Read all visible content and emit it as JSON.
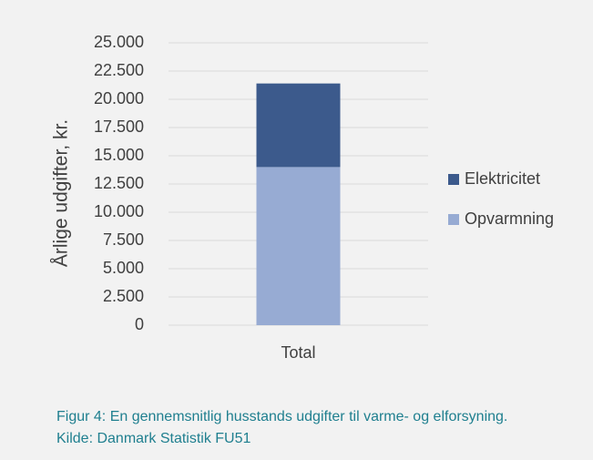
{
  "chart_data": {
    "type": "stacked_bar",
    "ylabel": "Årlige udgifter, kr.",
    "categories": [
      "Total"
    ],
    "series": [
      {
        "name": "Opvarmning",
        "color": "#97abd3",
        "values": [
          14000
        ]
      },
      {
        "name": "Elektricitet",
        "color": "#3c5a8c",
        "values": [
          7400
        ]
      }
    ],
    "ylim": [
      0,
      25000
    ],
    "yticks": [
      0,
      {
        "value": 2500,
        "label": "2.500"
      },
      {
        "value": 5000,
        "label": "5.000"
      },
      {
        "value": 7500,
        "label": "7.500"
      },
      {
        "value": 10000,
        "label": "10.000"
      },
      {
        "value": 12500,
        "label": "12.500"
      },
      {
        "value": 15000,
        "label": "15.000"
      },
      {
        "value": 17500,
        "label": "17.500"
      },
      {
        "value": 20000,
        "label": "20.000"
      },
      {
        "value": 22500,
        "label": "22.500"
      },
      {
        "value": 25000,
        "label": "25.000"
      }
    ],
    "grid": true,
    "legend": "right",
    "caption": [
      "Figur 4: En gennemsnitlig husstands udgifter til varme- og elforsyning.",
      "Kilde: Danmark Statistik FU51"
    ]
  }
}
